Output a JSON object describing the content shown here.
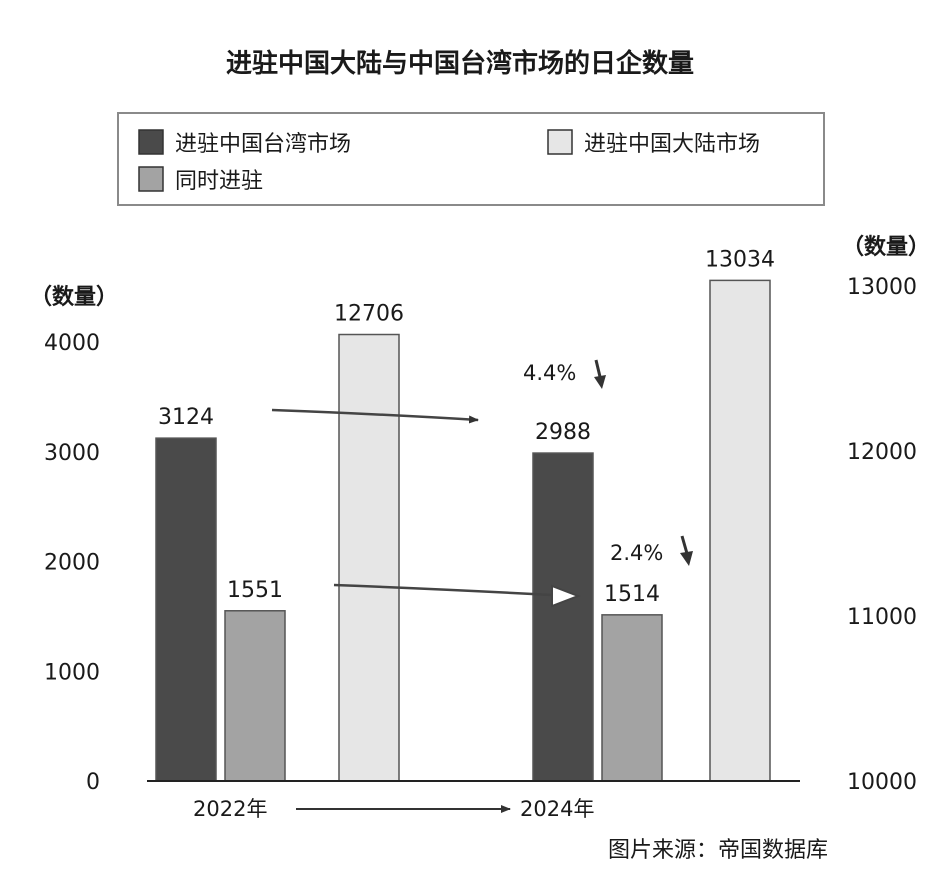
{
  "chart_data": {
    "type": "bar",
    "title": "进驻中国大陆与中国台湾市场的日企数量",
    "categories": [
      "2022年",
      "2024年"
    ],
    "series": [
      {
        "name": "进驻中国台湾市场",
        "values": [
          3124,
          2988
        ],
        "axis": "left",
        "color": "#4a4a4a",
        "value_labels": [
          "3124",
          "2988"
        ]
      },
      {
        "name": "同时进驻",
        "values": [
          1551,
          1514
        ],
        "axis": "left",
        "color": "#a3a3a3",
        "value_labels": [
          "1551",
          "1514"
        ]
      },
      {
        "name": "进驻中国大陆市场",
        "values": [
          12706,
          13034
        ],
        "axis": "right",
        "color": "#e6e6e6",
        "value_labels": [
          "12706",
          "13034"
        ]
      }
    ],
    "left_axis": {
      "label": "（数量）",
      "range": [
        0,
        4000
      ],
      "ticks": [
        "0",
        "1000",
        "2000",
        "3000",
        "4000"
      ]
    },
    "right_axis": {
      "label": "（数量）",
      "range": [
        10000,
        13000
      ],
      "ticks": [
        "10000",
        "11000",
        "12000",
        "13000"
      ]
    },
    "annotations": [
      {
        "text": "4.4%",
        "direction": "down",
        "refers_to": "进驻中国台湾市场"
      },
      {
        "text": "2.4%",
        "direction": "down",
        "refers_to": "同时进驻"
      }
    ],
    "legend": {
      "position": "top",
      "bordered": true
    },
    "grid": false,
    "source": "图片来源：帝国数据库"
  }
}
